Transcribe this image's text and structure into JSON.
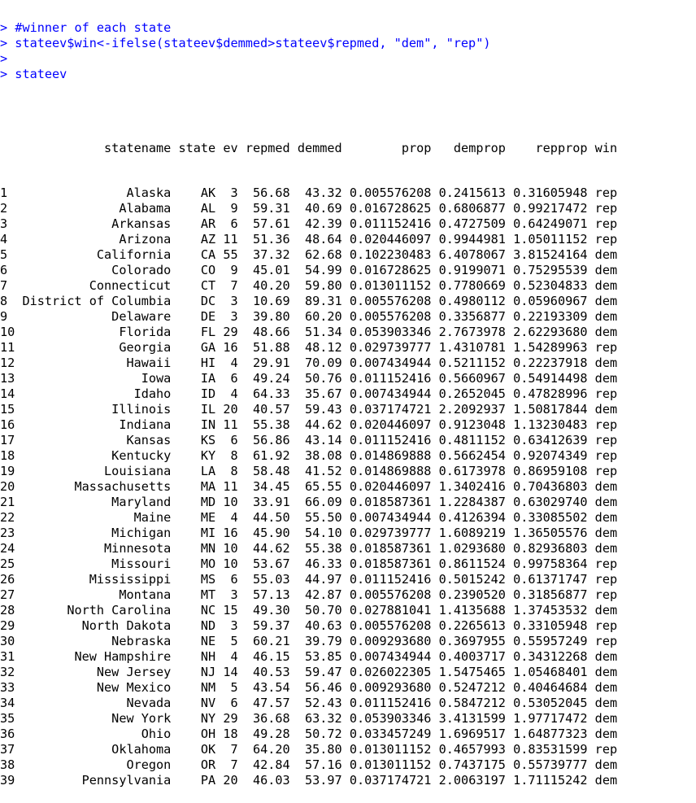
{
  "console": {
    "commands": [
      {
        "prompt": ">",
        "text": " #winner of each state"
      },
      {
        "prompt": ">",
        "text": " stateev$win<-ifelse(stateev$demmed>stateev$repmed, \"dem\", \"rep\")"
      },
      {
        "prompt": ">",
        "text": ""
      },
      {
        "prompt": ">",
        "text": " stateev"
      }
    ],
    "table": {
      "columns": [
        "statename",
        "state",
        "ev",
        "repmed",
        "demmed",
        "prop",
        "demprop",
        "repprop",
        "win"
      ],
      "rows": [
        [
          "1",
          "Alaska",
          "AK",
          "3",
          "56.68",
          "43.32",
          "0.005576208",
          "0.2415613",
          "0.31605948",
          "rep"
        ],
        [
          "2",
          "Alabama",
          "AL",
          "9",
          "59.31",
          "40.69",
          "0.016728625",
          "0.6806877",
          "0.99217472",
          "rep"
        ],
        [
          "3",
          "Arkansas",
          "AR",
          "6",
          "57.61",
          "42.39",
          "0.011152416",
          "0.4727509",
          "0.64249071",
          "rep"
        ],
        [
          "4",
          "Arizona",
          "AZ",
          "11",
          "51.36",
          "48.64",
          "0.020446097",
          "0.9944981",
          "1.05011152",
          "rep"
        ],
        [
          "5",
          "California",
          "CA",
          "55",
          "37.32",
          "62.68",
          "0.102230483",
          "6.4078067",
          "3.81524164",
          "dem"
        ],
        [
          "6",
          "Colorado",
          "CO",
          "9",
          "45.01",
          "54.99",
          "0.016728625",
          "0.9199071",
          "0.75295539",
          "dem"
        ],
        [
          "7",
          "Connecticut",
          "CT",
          "7",
          "40.20",
          "59.80",
          "0.013011152",
          "0.7780669",
          "0.52304833",
          "dem"
        ],
        [
          "8",
          "District of Columbia",
          "DC",
          "3",
          "10.69",
          "89.31",
          "0.005576208",
          "0.4980112",
          "0.05960967",
          "dem"
        ],
        [
          "9",
          "Delaware",
          "DE",
          "3",
          "39.80",
          "60.20",
          "0.005576208",
          "0.3356877",
          "0.22193309",
          "dem"
        ],
        [
          "10",
          "Florida",
          "FL",
          "29",
          "48.66",
          "51.34",
          "0.053903346",
          "2.7673978",
          "2.62293680",
          "dem"
        ],
        [
          "11",
          "Georgia",
          "GA",
          "16",
          "51.88",
          "48.12",
          "0.029739777",
          "1.4310781",
          "1.54289963",
          "rep"
        ],
        [
          "12",
          "Hawaii",
          "HI",
          "4",
          "29.91",
          "70.09",
          "0.007434944",
          "0.5211152",
          "0.22237918",
          "dem"
        ],
        [
          "13",
          "Iowa",
          "IA",
          "6",
          "49.24",
          "50.76",
          "0.011152416",
          "0.5660967",
          "0.54914498",
          "dem"
        ],
        [
          "14",
          "Idaho",
          "ID",
          "4",
          "64.33",
          "35.67",
          "0.007434944",
          "0.2652045",
          "0.47828996",
          "rep"
        ],
        [
          "15",
          "Illinois",
          "IL",
          "20",
          "40.57",
          "59.43",
          "0.037174721",
          "2.2092937",
          "1.50817844",
          "dem"
        ],
        [
          "16",
          "Indiana",
          "IN",
          "11",
          "55.38",
          "44.62",
          "0.020446097",
          "0.9123048",
          "1.13230483",
          "rep"
        ],
        [
          "17",
          "Kansas",
          "KS",
          "6",
          "56.86",
          "43.14",
          "0.011152416",
          "0.4811152",
          "0.63412639",
          "rep"
        ],
        [
          "18",
          "Kentucky",
          "KY",
          "8",
          "61.92",
          "38.08",
          "0.014869888",
          "0.5662454",
          "0.92074349",
          "rep"
        ],
        [
          "19",
          "Louisiana",
          "LA",
          "8",
          "58.48",
          "41.52",
          "0.014869888",
          "0.6173978",
          "0.86959108",
          "rep"
        ],
        [
          "20",
          "Massachusetts",
          "MA",
          "11",
          "34.45",
          "65.55",
          "0.020446097",
          "1.3402416",
          "0.70436803",
          "dem"
        ],
        [
          "21",
          "Maryland",
          "MD",
          "10",
          "33.91",
          "66.09",
          "0.018587361",
          "1.2284387",
          "0.63029740",
          "dem"
        ],
        [
          "22",
          "Maine",
          "ME",
          "4",
          "44.50",
          "55.50",
          "0.007434944",
          "0.4126394",
          "0.33085502",
          "dem"
        ],
        [
          "23",
          "Michigan",
          "MI",
          "16",
          "45.90",
          "54.10",
          "0.029739777",
          "1.6089219",
          "1.36505576",
          "dem"
        ],
        [
          "24",
          "Minnesota",
          "MN",
          "10",
          "44.62",
          "55.38",
          "0.018587361",
          "1.0293680",
          "0.82936803",
          "dem"
        ],
        [
          "25",
          "Missouri",
          "MO",
          "10",
          "53.67",
          "46.33",
          "0.018587361",
          "0.8611524",
          "0.99758364",
          "rep"
        ],
        [
          "26",
          "Mississippi",
          "MS",
          "6",
          "55.03",
          "44.97",
          "0.011152416",
          "0.5015242",
          "0.61371747",
          "rep"
        ],
        [
          "27",
          "Montana",
          "MT",
          "3",
          "57.13",
          "42.87",
          "0.005576208",
          "0.2390520",
          "0.31856877",
          "rep"
        ],
        [
          "28",
          "North Carolina",
          "NC",
          "15",
          "49.30",
          "50.70",
          "0.027881041",
          "1.4135688",
          "1.37453532",
          "dem"
        ],
        [
          "29",
          "North Dakota",
          "ND",
          "3",
          "59.37",
          "40.63",
          "0.005576208",
          "0.2265613",
          "0.33105948",
          "rep"
        ],
        [
          "30",
          "Nebraska",
          "NE",
          "5",
          "60.21",
          "39.79",
          "0.009293680",
          "0.3697955",
          "0.55957249",
          "rep"
        ],
        [
          "31",
          "New Hampshire",
          "NH",
          "4",
          "46.15",
          "53.85",
          "0.007434944",
          "0.4003717",
          "0.34312268",
          "dem"
        ],
        [
          "32",
          "New Jersey",
          "NJ",
          "14",
          "40.53",
          "59.47",
          "0.026022305",
          "1.5475465",
          "1.05468401",
          "dem"
        ],
        [
          "33",
          "New Mexico",
          "NM",
          "5",
          "43.54",
          "56.46",
          "0.009293680",
          "0.5247212",
          "0.40464684",
          "dem"
        ],
        [
          "34",
          "Nevada",
          "NV",
          "6",
          "47.57",
          "52.43",
          "0.011152416",
          "0.5847212",
          "0.53052045",
          "dem"
        ],
        [
          "35",
          "New York",
          "NY",
          "29",
          "36.68",
          "63.32",
          "0.053903346",
          "3.4131599",
          "1.97717472",
          "dem"
        ],
        [
          "36",
          "Ohio",
          "OH",
          "18",
          "49.28",
          "50.72",
          "0.033457249",
          "1.6969517",
          "1.64877323",
          "dem"
        ],
        [
          "37",
          "Oklahoma",
          "OK",
          "7",
          "64.20",
          "35.80",
          "0.013011152",
          "0.4657993",
          "0.83531599",
          "rep"
        ],
        [
          "38",
          "Oregon",
          "OR",
          "7",
          "42.84",
          "57.16",
          "0.013011152",
          "0.7437175",
          "0.55739777",
          "dem"
        ],
        [
          "39",
          "Pennsylvania",
          "PA",
          "20",
          "46.03",
          "53.97",
          "0.037174721",
          "2.0063197",
          "1.71115242",
          "dem"
        ]
      ]
    }
  },
  "colors": {
    "command": "#0000ff",
    "output": "#000000",
    "background": "#ffffff"
  }
}
